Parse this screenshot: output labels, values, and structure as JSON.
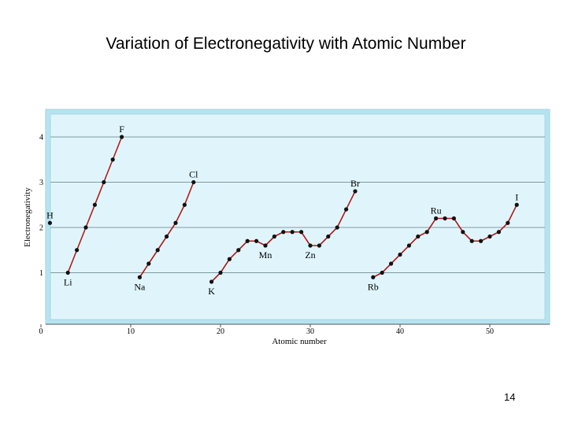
{
  "slide": {
    "title": "Variation of Electronegativity with Atomic Number",
    "page_number": "14"
  },
  "colors": {
    "panel_fill": "#b7e3f0",
    "plot_fill": "#e0f5fb",
    "gridline": "#7f9aa3",
    "line": "#b31b1b",
    "point": "#111111"
  },
  "chart_data": {
    "type": "line",
    "title": "",
    "xlabel": "Atomic number",
    "ylabel": "Electronegativity",
    "xlim": [
      0,
      57
    ],
    "ylim": [
      0,
      4.6
    ],
    "xticks": [
      0,
      10,
      20,
      30,
      40,
      50
    ],
    "yticks": [
      1,
      2,
      3,
      4
    ],
    "grid": "horizontal",
    "series": [
      {
        "points": [
          [
            1,
            2.1
          ]
        ]
      },
      {
        "points": [
          [
            3,
            1.0
          ],
          [
            4,
            1.5
          ],
          [
            5,
            2.0
          ],
          [
            6,
            2.5
          ],
          [
            7,
            3.0
          ],
          [
            8,
            3.5
          ],
          [
            9,
            4.0
          ]
        ]
      },
      {
        "points": [
          [
            11,
            0.9
          ],
          [
            12,
            1.2
          ],
          [
            13,
            1.5
          ],
          [
            14,
            1.8
          ],
          [
            15,
            2.1
          ],
          [
            16,
            2.5
          ],
          [
            17,
            3.0
          ]
        ]
      },
      {
        "points": [
          [
            19,
            0.8
          ],
          [
            20,
            1.0
          ],
          [
            21,
            1.3
          ],
          [
            22,
            1.5
          ],
          [
            23,
            1.7
          ],
          [
            24,
            1.7
          ],
          [
            25,
            1.6
          ],
          [
            26,
            1.8
          ],
          [
            27,
            1.9
          ],
          [
            28,
            1.9
          ],
          [
            29,
            1.9
          ],
          [
            30,
            1.6
          ],
          [
            31,
            1.6
          ],
          [
            32,
            1.8
          ],
          [
            33,
            2.0
          ],
          [
            34,
            2.4
          ],
          [
            35,
            2.8
          ]
        ]
      },
      {
        "points": [
          [
            37,
            0.9
          ],
          [
            38,
            1.0
          ],
          [
            39,
            1.2
          ],
          [
            40,
            1.4
          ],
          [
            41,
            1.6
          ],
          [
            42,
            1.8
          ],
          [
            43,
            1.9
          ],
          [
            44,
            2.2
          ],
          [
            45,
            2.2
          ],
          [
            46,
            2.2
          ],
          [
            47,
            1.9
          ],
          [
            48,
            1.7
          ],
          [
            49,
            1.7
          ],
          [
            50,
            1.8
          ],
          [
            51,
            1.9
          ],
          [
            52,
            2.1
          ],
          [
            53,
            2.5
          ]
        ]
      }
    ],
    "labels": [
      {
        "text": "H",
        "x": 1,
        "y": 2.1,
        "position": "above"
      },
      {
        "text": "Li",
        "x": 3,
        "y": 1.0,
        "position": "below"
      },
      {
        "text": "F",
        "x": 9,
        "y": 4.0,
        "position": "above"
      },
      {
        "text": "Na",
        "x": 11,
        "y": 0.9,
        "position": "below"
      },
      {
        "text": "Cl",
        "x": 17,
        "y": 3.0,
        "position": "above"
      },
      {
        "text": "K",
        "x": 19,
        "y": 0.8,
        "position": "below"
      },
      {
        "text": "Mn",
        "x": 25,
        "y": 1.6,
        "position": "below"
      },
      {
        "text": "Zn",
        "x": 30,
        "y": 1.6,
        "position": "below"
      },
      {
        "text": "Br",
        "x": 35,
        "y": 2.8,
        "position": "above"
      },
      {
        "text": "Rb",
        "x": 37,
        "y": 0.9,
        "position": "below"
      },
      {
        "text": "Ru",
        "x": 44,
        "y": 2.2,
        "position": "above"
      },
      {
        "text": "I",
        "x": 53,
        "y": 2.5,
        "position": "above"
      }
    ]
  }
}
